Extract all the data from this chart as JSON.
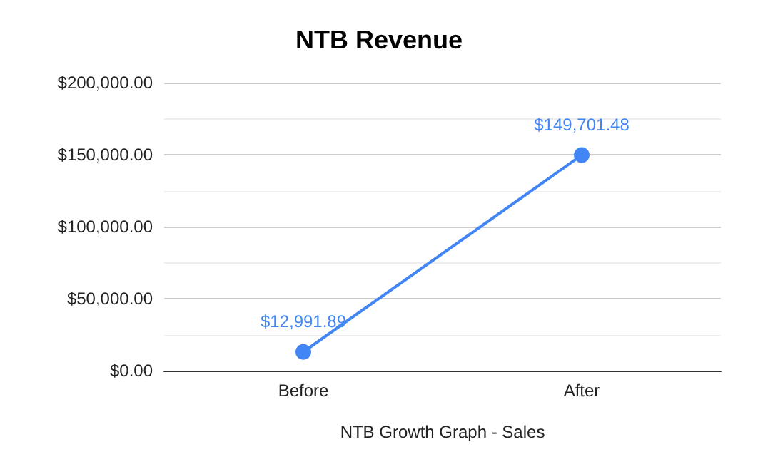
{
  "chart_data": {
    "type": "line",
    "title": "NTB Revenue",
    "xlabel": "NTB Growth Graph - Sales",
    "categories": [
      "Before",
      "After"
    ],
    "series": [
      {
        "color": "#4285f4",
        "values": [
          12991.89,
          149701.48
        ],
        "value_labels": [
          "$12,991.89",
          "$149,701.48"
        ]
      }
    ],
    "ylim": [
      0,
      200000
    ],
    "yticks": [
      {
        "value": 0,
        "label": "$0.00"
      },
      {
        "value": 50000,
        "label": "$50,000.00"
      },
      {
        "value": 100000,
        "label": "$100,000.00"
      },
      {
        "value": 150000,
        "label": "$150,000.00"
      },
      {
        "value": 200000,
        "label": "$200,000.00"
      }
    ],
    "grid": "y",
    "marker": "circle",
    "line_style": "solid"
  }
}
